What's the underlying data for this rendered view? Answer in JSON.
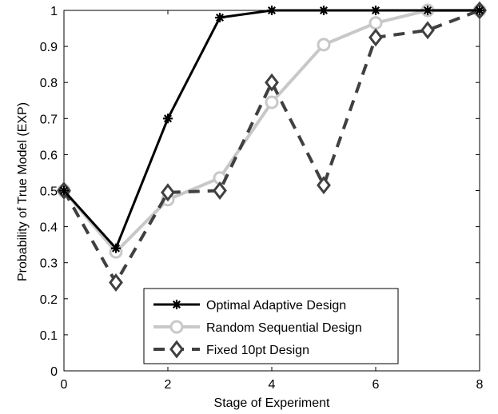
{
  "chart_data": {
    "type": "line",
    "title": "",
    "xlabel": "Stage of Experiment",
    "ylabel": "Probability of True Model (EXP)",
    "xlim": [
      0,
      8
    ],
    "ylim": [
      0,
      1
    ],
    "xticks": [
      0,
      2,
      4,
      6,
      8
    ],
    "yticks": [
      0,
      0.1,
      0.2,
      0.3,
      0.4,
      0.5,
      0.6,
      0.7,
      0.8,
      0.9,
      1
    ],
    "x_tick_labels": [
      "0",
      "2",
      "4",
      "6",
      "8"
    ],
    "y_tick_labels": [
      "0",
      "0.1",
      "0.2",
      "0.3",
      "0.4",
      "0.5",
      "0.6",
      "0.7",
      "0.8",
      "0.9",
      "1"
    ],
    "grid": false,
    "legend_position": "bottom-right",
    "series": [
      {
        "name": "Optimal Adaptive Design",
        "x": [
          0,
          1,
          2,
          3,
          4,
          5,
          6,
          7,
          8
        ],
        "values": [
          0.5,
          0.34,
          0.7,
          0.98,
          1.0,
          1.0,
          1.0,
          1.0,
          1.0
        ],
        "color": "#000000",
        "line_style": "solid",
        "marker": "asterisk"
      },
      {
        "name": "Random Sequential Design",
        "x": [
          0,
          1,
          2,
          3,
          4,
          5,
          6,
          7,
          8
        ],
        "values": [
          0.5,
          0.33,
          0.475,
          0.535,
          0.745,
          0.905,
          0.965,
          1.0,
          1.0
        ],
        "color": "#c8c8c8",
        "line_style": "solid",
        "marker": "circle"
      },
      {
        "name": "Fixed 10pt Design",
        "x": [
          0,
          1,
          2,
          3,
          4,
          5,
          6,
          7,
          8
        ],
        "values": [
          0.5,
          0.245,
          0.495,
          0.5,
          0.8,
          0.515,
          0.925,
          0.945,
          1.0
        ],
        "color": "#404040",
        "line_style": "dashed",
        "marker": "diamond"
      }
    ]
  }
}
